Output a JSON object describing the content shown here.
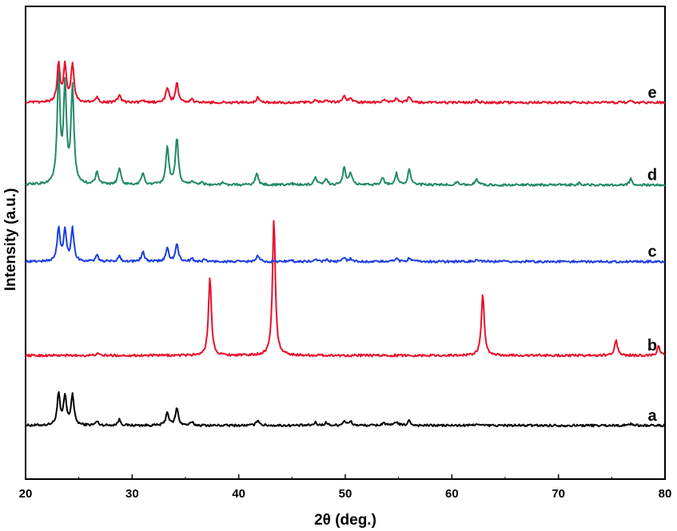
{
  "chart_data": {
    "type": "line",
    "xlabel": "2θ (deg.)",
    "ylabel": "Intensity (a.u.)",
    "xlim": [
      20,
      80
    ],
    "xticks": [
      20,
      30,
      40,
      50,
      60,
      70,
      80
    ],
    "yticks_shown": false,
    "grid": false,
    "series": [
      {
        "name": "a",
        "color": "#000000",
        "baseline": 0.28,
        "peaks": [
          [
            23.1,
            0.16
          ],
          [
            23.7,
            0.15
          ],
          [
            24.4,
            0.16
          ],
          [
            26.7,
            0.02
          ],
          [
            28.8,
            0.03
          ],
          [
            33.3,
            0.07
          ],
          [
            34.2,
            0.09
          ],
          [
            35.6,
            0.015
          ],
          [
            41.8,
            0.03
          ],
          [
            47.2,
            0.015
          ],
          [
            48.2,
            0.015
          ],
          [
            49.9,
            0.025
          ],
          [
            50.5,
            0.02
          ],
          [
            53.6,
            0.015
          ],
          [
            54.8,
            0.02
          ],
          [
            56.0,
            0.025
          ],
          [
            62.3,
            0.01
          ],
          [
            76.8,
            0.01
          ]
        ]
      },
      {
        "name": "b",
        "color": "#e8102a",
        "baseline": 0.645,
        "peaks": [
          [
            26.7,
            0.01
          ],
          [
            37.3,
            0.41
          ],
          [
            43.3,
            0.71
          ],
          [
            62.9,
            0.32
          ],
          [
            75.4,
            0.08
          ],
          [
            79.4,
            0.05
          ]
        ]
      },
      {
        "name": "c",
        "color": "#1e3ee0",
        "baseline": 1.135,
        "peaks": [
          [
            23.1,
            0.17
          ],
          [
            23.7,
            0.16
          ],
          [
            24.4,
            0.17
          ],
          [
            26.7,
            0.03
          ],
          [
            28.8,
            0.03
          ],
          [
            31.0,
            0.05
          ],
          [
            33.3,
            0.07
          ],
          [
            34.2,
            0.09
          ],
          [
            35.6,
            0.015
          ],
          [
            36.8,
            0.01
          ],
          [
            41.8,
            0.03
          ],
          [
            44.8,
            0.01
          ],
          [
            47.2,
            0.01
          ],
          [
            48.2,
            0.01
          ],
          [
            49.9,
            0.02
          ],
          [
            50.5,
            0.015
          ],
          [
            54.8,
            0.02
          ],
          [
            56.0,
            0.02
          ],
          [
            62.3,
            0.01
          ]
        ]
      },
      {
        "name": "d",
        "color": "#22896a",
        "baseline": 1.535,
        "peaks": [
          [
            23.1,
            0.56
          ],
          [
            23.7,
            0.5
          ],
          [
            24.4,
            0.5
          ],
          [
            26.7,
            0.07
          ],
          [
            28.8,
            0.09
          ],
          [
            31.0,
            0.06
          ],
          [
            33.3,
            0.2
          ],
          [
            34.2,
            0.24
          ],
          [
            35.6,
            0.02
          ],
          [
            36.5,
            0.015
          ],
          [
            38.5,
            0.01
          ],
          [
            41.7,
            0.06
          ],
          [
            44.9,
            0.01
          ],
          [
            47.2,
            0.035
          ],
          [
            48.2,
            0.03
          ],
          [
            49.9,
            0.09
          ],
          [
            50.5,
            0.06
          ],
          [
            53.5,
            0.04
          ],
          [
            54.8,
            0.06
          ],
          [
            56.0,
            0.08
          ],
          [
            60.5,
            0.02
          ],
          [
            62.3,
            0.03
          ],
          [
            72.0,
            0.01
          ],
          [
            76.8,
            0.03
          ]
        ]
      },
      {
        "name": "e",
        "color": "#e8102a",
        "baseline": 1.965,
        "peaks": [
          [
            23.1,
            0.2
          ],
          [
            23.7,
            0.19
          ],
          [
            24.4,
            0.2
          ],
          [
            26.7,
            0.03
          ],
          [
            28.8,
            0.04
          ],
          [
            31.0,
            0.01
          ],
          [
            33.3,
            0.08
          ],
          [
            34.2,
            0.1
          ],
          [
            35.6,
            0.015
          ],
          [
            41.8,
            0.03
          ],
          [
            47.2,
            0.015
          ],
          [
            48.2,
            0.015
          ],
          [
            49.9,
            0.035
          ],
          [
            50.5,
            0.025
          ],
          [
            53.6,
            0.015
          ],
          [
            54.8,
            0.02
          ],
          [
            56.0,
            0.03
          ],
          [
            62.3,
            0.01
          ],
          [
            76.8,
            0.01
          ]
        ]
      }
    ]
  }
}
